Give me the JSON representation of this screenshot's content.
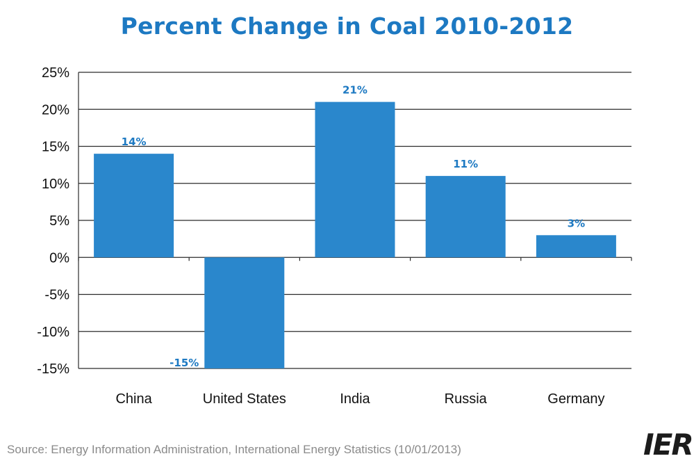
{
  "chart_data": {
    "type": "bar",
    "title": "Percent Change in Coal 2010-2012",
    "categories": [
      "China",
      "United States",
      "India",
      "Russia",
      "Germany"
    ],
    "values": [
      14,
      -15,
      21,
      11,
      3
    ],
    "data_labels": [
      "14%",
      "-15%",
      "21%",
      "11%",
      "3%"
    ],
    "ylim": [
      -15,
      25
    ],
    "yticks": [
      25,
      20,
      15,
      10,
      5,
      0,
      -5,
      -10,
      -15
    ],
    "ytick_labels": [
      "25%",
      "20%",
      "15%",
      "10%",
      "5%",
      "0%",
      "-5%",
      "-10%",
      "-15%"
    ],
    "xlabel": "",
    "ylabel": "",
    "grid": true,
    "legend": "none"
  },
  "colors": {
    "bar": "#2a87cc",
    "title": "#1d79c2",
    "data_label": "#1d79c2",
    "grid": "#2b2b2b",
    "tick_label": "#111111",
    "source": "#8a8a8a"
  },
  "footer": {
    "source": "Source: Energy Information Administration, International Energy Statistics (10/01/2013)",
    "logo": "IER"
  }
}
